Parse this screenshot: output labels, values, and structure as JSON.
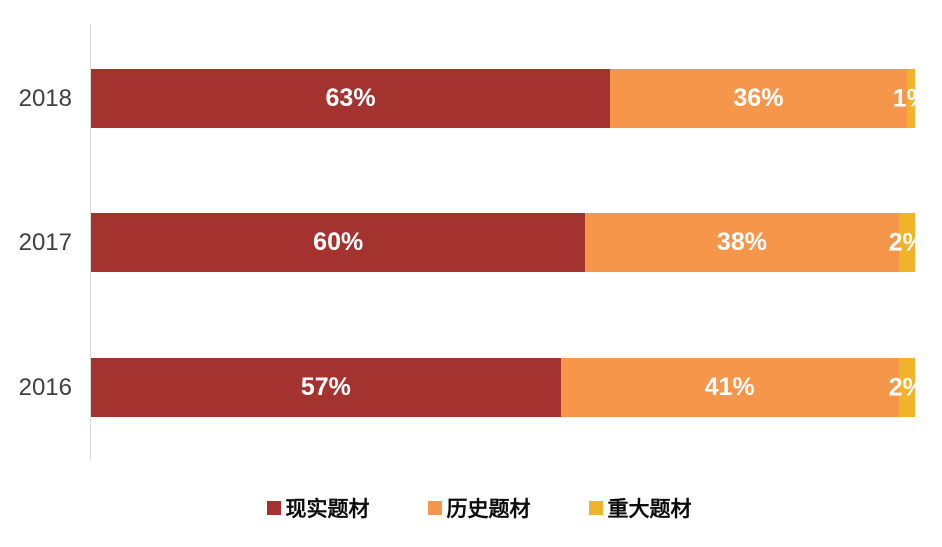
{
  "chart_data": {
    "type": "bar",
    "orientation": "horizontal",
    "stacked": true,
    "title": "",
    "xlabel": "",
    "ylabel": "",
    "xlim": [
      0,
      100
    ],
    "value_format": "percent",
    "grid": false,
    "legend_position": "bottom",
    "axis_line_color": "#d9d9d9",
    "background_color": "#ffffff",
    "category_label_color": "#404040",
    "data_label_color": "#ffffff",
    "categories": [
      "2018",
      "2017",
      "2016"
    ],
    "series": [
      {
        "name": "现实题材",
        "color": "#a43330",
        "values": [
          63,
          60,
          57
        ]
      },
      {
        "name": "历史题材",
        "color": "#f6964b",
        "values": [
          36,
          38,
          41
        ]
      },
      {
        "name": "重大题材",
        "color": "#f0b32c",
        "values": [
          1,
          2,
          2
        ]
      }
    ],
    "data_labels": [
      [
        "63%",
        "36%",
        "1%"
      ],
      [
        "60%",
        "38%",
        "2%"
      ],
      [
        "57%",
        "41%",
        "2%"
      ]
    ]
  }
}
